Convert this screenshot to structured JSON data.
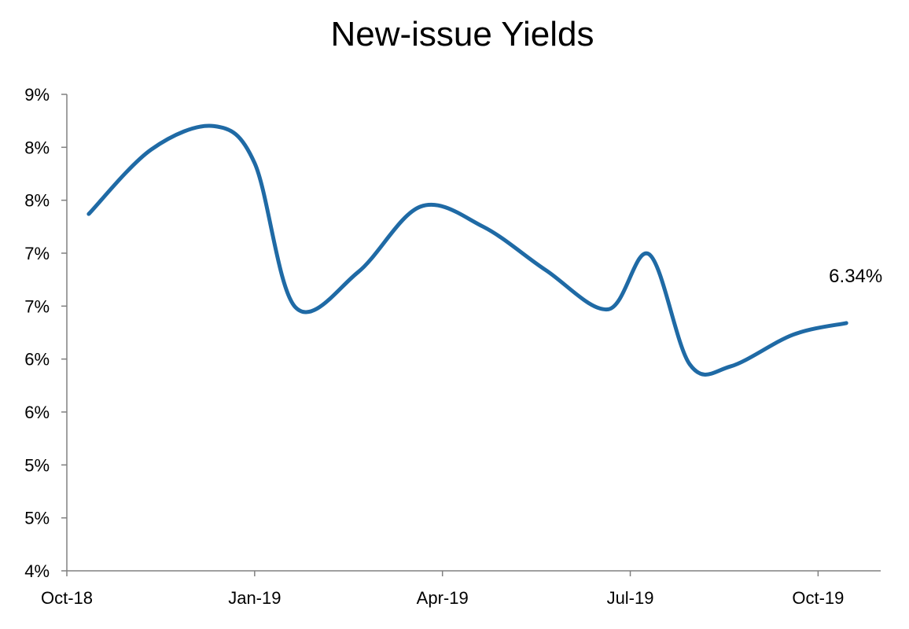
{
  "chart_data": {
    "type": "line",
    "title": "New-issue Yields",
    "xlabel": "",
    "ylabel": "",
    "x_tick_labels": [
      "Oct-18",
      "Jan-19",
      "Apr-19",
      "Jul-19",
      "Oct-19"
    ],
    "y_tick_labels": [
      "4%",
      "5%",
      "5%",
      "6%",
      "6%",
      "7%",
      "7%",
      "8%",
      "8%",
      "9%"
    ],
    "ylim": [
      4.0,
      8.5
    ],
    "y_tick_values": [
      4.0,
      4.5,
      5.0,
      5.5,
      6.0,
      6.5,
      7.0,
      7.5,
      8.0,
      8.5
    ],
    "xlim": [
      0,
      13
    ],
    "grid": false,
    "legend": "none",
    "series": [
      {
        "color": "#1f6aa5",
        "x": [
          0.35,
          1.35,
          2.35,
          3.0,
          3.65,
          4.65,
          5.65,
          6.65,
          7.65,
          8.65,
          9.3,
          9.95,
          10.6,
          11.6,
          12.45
        ],
        "y": [
          7.37,
          7.98,
          8.2,
          7.85,
          6.49,
          6.82,
          7.44,
          7.25,
          6.84,
          6.47,
          6.99,
          5.95,
          5.93,
          6.23,
          6.34
        ],
        "end_label": "6.34%"
      }
    ]
  }
}
